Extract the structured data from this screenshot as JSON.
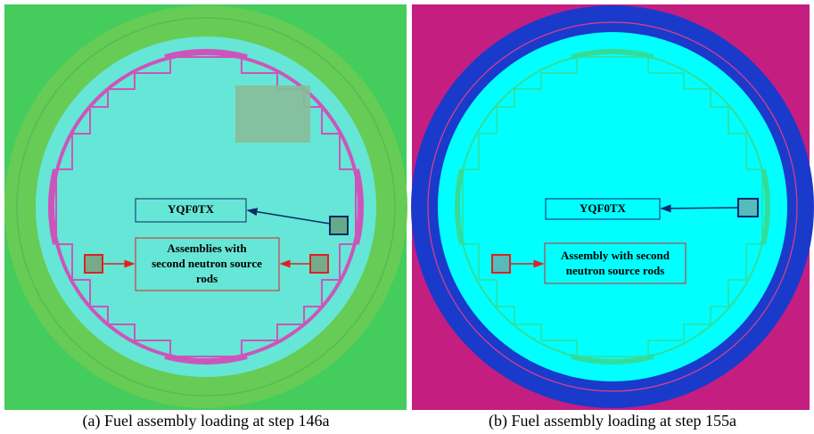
{
  "panels": [
    {
      "assembly_label": "YQF0TX",
      "source_label": [
        "Assemblies with",
        "second neutron source",
        "rods"
      ],
      "caption": "(a) Fuel assembly loading at step 146a"
    },
    {
      "assembly_label": "YQF0TX",
      "source_label": [
        "Assembly with second",
        "neutron source rods"
      ],
      "caption": "(b) Fuel assembly loading at step 155a"
    }
  ]
}
